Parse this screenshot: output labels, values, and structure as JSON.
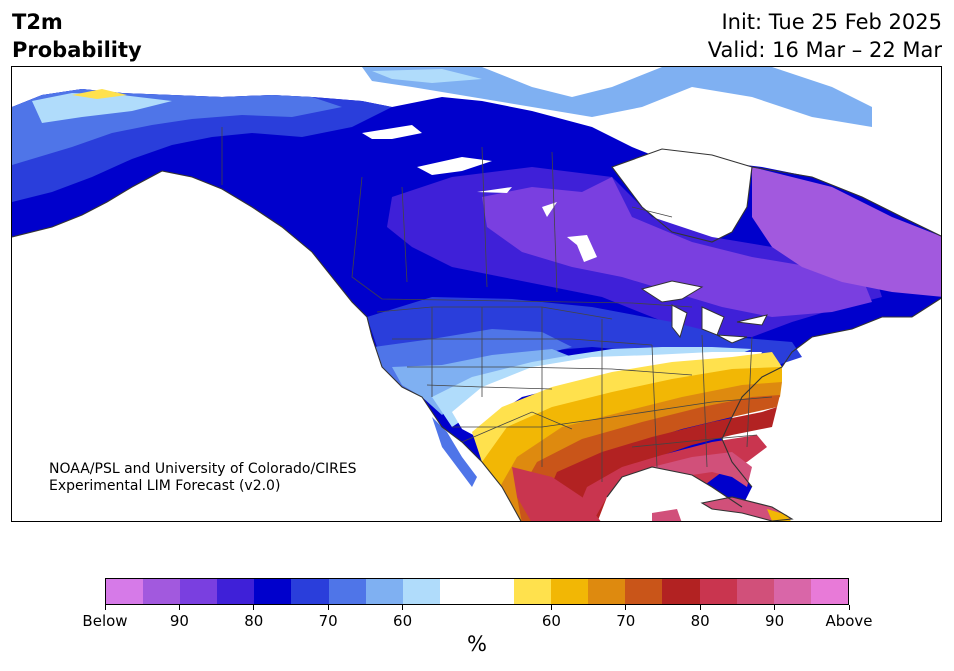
{
  "header": {
    "title_line1": "T2m",
    "title_line2": "Probability",
    "init_text": "Init: Tue 25 Feb 2025",
    "valid_text": "Valid: 16 Mar – 22 Mar"
  },
  "credit": {
    "line1": "NOAA/PSL and University of Colorado/CIRES",
    "line2": "Experimental LIM Forecast (v2.0)"
  },
  "colorbar": {
    "colors": [
      "#d67ae8",
      "#a259de",
      "#7a3fe0",
      "#3f20d8",
      "#0000cc",
      "#2a3edb",
      "#4f75e8",
      "#7fb0f2",
      "#b0dcfb",
      "#ffffff",
      "#ffffff",
      "#ffe14d",
      "#f2b705",
      "#de8a0f",
      "#c95519",
      "#b22222",
      "#c9354f",
      "#d1507a",
      "#d966a8",
      "#e87ad8"
    ],
    "tick_labels": [
      {
        "label": "Below",
        "frac": 0.0
      },
      {
        "label": "90",
        "frac": 0.1
      },
      {
        "label": "80",
        "frac": 0.2
      },
      {
        "label": "70",
        "frac": 0.3
      },
      {
        "label": "60",
        "frac": 0.4
      },
      {
        "label": "60",
        "frac": 0.6
      },
      {
        "label": "70",
        "frac": 0.7
      },
      {
        "label": "80",
        "frac": 0.8
      },
      {
        "label": "90",
        "frac": 0.9
      },
      {
        "label": "Above",
        "frac": 1.0
      }
    ],
    "unit": "%"
  }
}
